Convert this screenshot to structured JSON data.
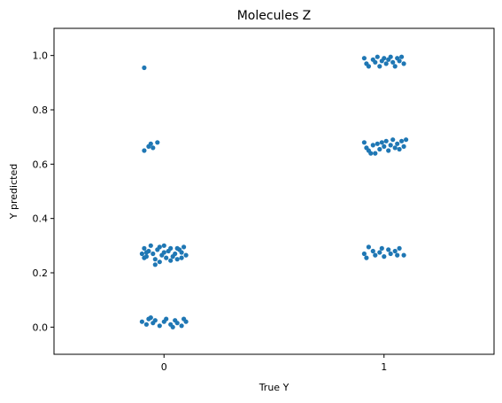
{
  "chart_data": {
    "type": "scatter",
    "title": "Molecules Z",
    "xlabel": "True Y",
    "ylabel": "Y predicted",
    "x_categories": [
      "0",
      "1"
    ],
    "xlim": [
      -0.5,
      1.5
    ],
    "ylim": [
      -0.1,
      1.1
    ],
    "yticks": [
      "0.0",
      "0.2",
      "0.4",
      "0.6",
      "0.8",
      "1.0"
    ],
    "grid": false,
    "legend": "none",
    "point_color": "#1f77b4",
    "series": [
      {
        "values": [
          [
            -0.09,
            0.955
          ],
          [
            -0.09,
            0.65
          ],
          [
            -0.07,
            0.665
          ],
          [
            -0.06,
            0.675
          ],
          [
            -0.05,
            0.66
          ],
          [
            -0.03,
            0.68
          ],
          [
            -0.1,
            0.27
          ],
          [
            -0.09,
            0.29
          ],
          [
            -0.08,
            0.26
          ],
          [
            -0.07,
            0.28
          ],
          [
            -0.06,
            0.3
          ],
          [
            -0.05,
            0.27
          ],
          [
            -0.04,
            0.25
          ],
          [
            -0.03,
            0.285
          ],
          [
            -0.02,
            0.295
          ],
          [
            -0.01,
            0.265
          ],
          [
            0.0,
            0.275
          ],
          [
            0.01,
            0.255
          ],
          [
            0.02,
            0.28
          ],
          [
            0.03,
            0.29
          ],
          [
            0.04,
            0.26
          ],
          [
            0.05,
            0.27
          ],
          [
            0.06,
            0.25
          ],
          [
            0.07,
            0.285
          ],
          [
            0.08,
            0.275
          ],
          [
            0.09,
            0.295
          ],
          [
            0.1,
            0.265
          ],
          [
            -0.08,
            0.275
          ],
          [
            -0.02,
            0.24
          ],
          [
            0.03,
            0.245
          ],
          [
            0.08,
            0.255
          ],
          [
            -0.04,
            0.23
          ],
          [
            0.0,
            0.3
          ],
          [
            0.06,
            0.29
          ],
          [
            -0.09,
            0.255
          ],
          [
            -0.1,
            0.02
          ],
          [
            -0.08,
            0.01
          ],
          [
            -0.07,
            0.03
          ],
          [
            -0.05,
            0.015
          ],
          [
            -0.04,
            0.025
          ],
          [
            -0.02,
            0.005
          ],
          [
            0.0,
            0.02
          ],
          [
            0.01,
            0.03
          ],
          [
            0.03,
            0.01
          ],
          [
            0.05,
            0.025
          ],
          [
            0.06,
            0.015
          ],
          [
            0.08,
            0.005
          ],
          [
            0.09,
            0.03
          ],
          [
            0.1,
            0.02
          ],
          [
            -0.06,
            0.035
          ],
          [
            0.04,
            0.0
          ],
          [
            0.91,
            0.99
          ],
          [
            0.92,
            0.97
          ],
          [
            0.93,
            0.96
          ],
          [
            0.95,
            0.985
          ],
          [
            0.96,
            0.975
          ],
          [
            0.97,
            0.995
          ],
          [
            0.98,
            0.96
          ],
          [
            0.99,
            0.98
          ],
          [
            1.0,
            0.99
          ],
          [
            1.01,
            0.97
          ],
          [
            1.02,
            0.985
          ],
          [
            1.03,
            0.995
          ],
          [
            1.04,
            0.975
          ],
          [
            1.05,
            0.96
          ],
          [
            1.06,
            0.99
          ],
          [
            1.07,
            0.98
          ],
          [
            1.08,
            0.995
          ],
          [
            1.09,
            0.97
          ],
          [
            0.91,
            0.68
          ],
          [
            0.92,
            0.66
          ],
          [
            0.93,
            0.65
          ],
          [
            0.95,
            0.67
          ],
          [
            0.96,
            0.64
          ],
          [
            0.97,
            0.675
          ],
          [
            0.98,
            0.655
          ],
          [
            0.99,
            0.68
          ],
          [
            1.0,
            0.665
          ],
          [
            1.01,
            0.685
          ],
          [
            1.02,
            0.65
          ],
          [
            1.03,
            0.67
          ],
          [
            1.04,
            0.69
          ],
          [
            1.05,
            0.66
          ],
          [
            1.06,
            0.675
          ],
          [
            1.07,
            0.655
          ],
          [
            1.08,
            0.685
          ],
          [
            1.09,
            0.665
          ],
          [
            1.1,
            0.69
          ],
          [
            0.94,
            0.64
          ],
          [
            0.91,
            0.27
          ],
          [
            0.92,
            0.255
          ],
          [
            0.93,
            0.295
          ],
          [
            0.95,
            0.28
          ],
          [
            0.96,
            0.265
          ],
          [
            0.98,
            0.275
          ],
          [
            0.99,
            0.29
          ],
          [
            1.0,
            0.26
          ],
          [
            1.02,
            0.285
          ],
          [
            1.03,
            0.27
          ],
          [
            1.05,
            0.28
          ],
          [
            1.06,
            0.265
          ],
          [
            1.07,
            0.29
          ],
          [
            1.09,
            0.265
          ]
        ]
      }
    ]
  }
}
